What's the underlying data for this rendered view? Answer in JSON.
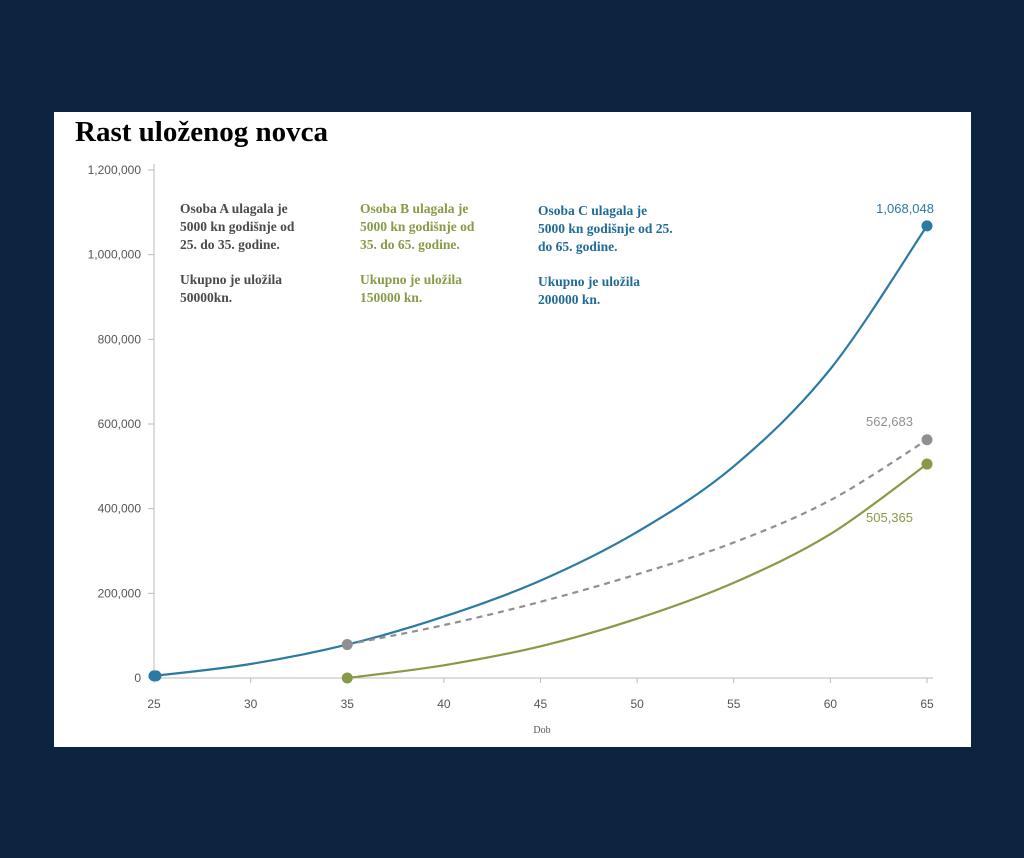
{
  "chart_data": {
    "type": "line",
    "title": "Rast uloženog novca",
    "xlabel": "Dob",
    "ylabel": "",
    "xlim": [
      25,
      65
    ],
    "ylim": [
      0,
      1200000
    ],
    "x_ticks": [
      25,
      30,
      35,
      40,
      45,
      50,
      55,
      60,
      65
    ],
    "y_ticks": [
      0,
      200000,
      400000,
      600000,
      800000,
      1000000,
      1200000
    ],
    "y_tick_labels": [
      "0",
      "200,000",
      "400,000",
      "600,000",
      "800,000",
      "1,000,000",
      "1,200,000"
    ],
    "grid": false,
    "series": [
      {
        "key": "C",
        "color": "#2b7aa3",
        "dashed": false,
        "points": [
          [
            25,
            5000
          ],
          [
            30,
            33000
          ],
          [
            35,
            79000
          ],
          [
            40,
            145000
          ],
          [
            45,
            230000
          ],
          [
            50,
            345000
          ],
          [
            55,
            500000
          ],
          [
            60,
            730000
          ],
          [
            65,
            1068048
          ]
        ],
        "end_label": "1,068,048"
      },
      {
        "key": "A",
        "color": "#909090",
        "dashed": true,
        "points": [
          [
            35,
            79000
          ],
          [
            40,
            125000
          ],
          [
            45,
            180000
          ],
          [
            50,
            245000
          ],
          [
            55,
            320000
          ],
          [
            60,
            420000
          ],
          [
            65,
            562683
          ]
        ],
        "end_label": "562,683"
      },
      {
        "key": "B",
        "color": "#879a45",
        "dashed": false,
        "points": [
          [
            35,
            0
          ],
          [
            40,
            30000
          ],
          [
            45,
            75000
          ],
          [
            50,
            140000
          ],
          [
            55,
            225000
          ],
          [
            60,
            340000
          ],
          [
            65,
            505365
          ]
        ],
        "end_label": "505,365"
      }
    ],
    "annotations": {
      "a": {
        "color": "#4a4a4a",
        "line1": "Osoba A ulagala je",
        "line2": "5000 kn godišnje od",
        "line3": "25. do 35. godine.",
        "line4": "Ukupno je uložila",
        "line5": "50000kn."
      },
      "b": {
        "color": "#879a45",
        "line1": "Osoba B ulagala je",
        "line2": "5000 kn godišnje od",
        "line3": "35. do 65. godine.",
        "line4": "Ukupno je uložila",
        "line5": "150000 kn."
      },
      "c": {
        "color": "#1f6b96",
        "line1": "Osoba C ulagala je",
        "line2": "5000 kn godišnje od 25.",
        "line3": "do 65. godine.",
        "line4": "Ukupno je uložila",
        "line5": "200000 kn."
      }
    }
  }
}
